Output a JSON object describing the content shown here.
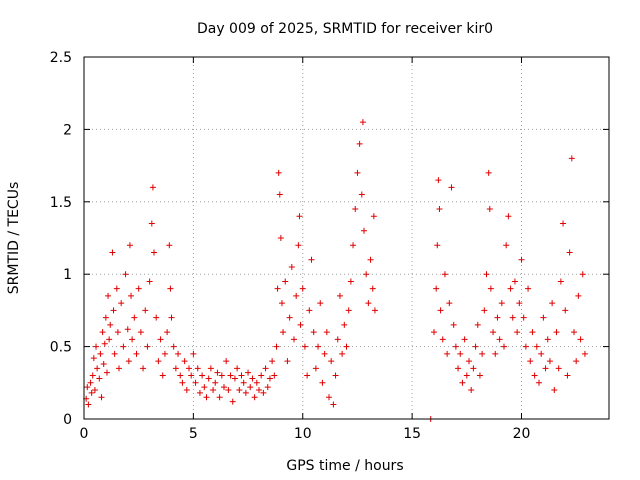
{
  "chart_data": {
    "type": "scatter",
    "title": "Day 009 of 2025, SRMTID for receiver kir0",
    "xlabel": "GPS time / hours",
    "ylabel": "SRMTID / TECUs",
    "xlim": [
      0,
      24
    ],
    "ylim": [
      0,
      2.5
    ],
    "xticks": [
      0,
      5,
      10,
      15,
      20
    ],
    "xtick_labels": [
      "0",
      "5",
      "10",
      "15",
      "20"
    ],
    "yticks": [
      0,
      0.5,
      1,
      1.5,
      2,
      2.5
    ],
    "ytick_labels": [
      "0",
      "0.5",
      "1",
      "1.5",
      "2",
      "2.5"
    ],
    "grid": true,
    "marker": "+",
    "color": "#e00000",
    "series": [
      {
        "name": "SRMTID",
        "points": [
          [
            0.1,
            0.14
          ],
          [
            0.15,
            0.22
          ],
          [
            0.2,
            0.1
          ],
          [
            0.3,
            0.25
          ],
          [
            0.35,
            0.18
          ],
          [
            0.4,
            0.3
          ],
          [
            0.45,
            0.42
          ],
          [
            0.5,
            0.2
          ],
          [
            0.55,
            0.5
          ],
          [
            0.6,
            0.35
          ],
          [
            0.7,
            0.28
          ],
          [
            0.75,
            0.45
          ],
          [
            0.8,
            0.15
          ],
          [
            0.85,
            0.6
          ],
          [
            0.9,
            0.38
          ],
          [
            0.95,
            0.52
          ],
          [
            1.0,
            0.7
          ],
          [
            1.05,
            0.32
          ],
          [
            1.1,
            0.85
          ],
          [
            1.15,
            0.55
          ],
          [
            1.2,
            0.65
          ],
          [
            1.3,
            1.15
          ],
          [
            1.35,
            0.75
          ],
          [
            1.4,
            0.45
          ],
          [
            1.5,
            0.9
          ],
          [
            1.55,
            0.6
          ],
          [
            1.6,
            0.35
          ],
          [
            1.7,
            0.8
          ],
          [
            1.8,
            0.5
          ],
          [
            1.9,
            1.0
          ],
          [
            2.0,
            0.62
          ],
          [
            2.05,
            0.4
          ],
          [
            2.1,
            1.2
          ],
          [
            2.15,
            0.85
          ],
          [
            2.2,
            0.55
          ],
          [
            2.3,
            0.7
          ],
          [
            2.4,
            0.45
          ],
          [
            2.5,
            0.9
          ],
          [
            2.6,
            0.6
          ],
          [
            2.7,
            0.35
          ],
          [
            2.8,
            0.75
          ],
          [
            2.9,
            0.5
          ],
          [
            3.0,
            0.95
          ],
          [
            3.1,
            1.35
          ],
          [
            3.15,
            1.6
          ],
          [
            3.2,
            1.15
          ],
          [
            3.3,
            0.7
          ],
          [
            3.4,
            0.4
          ],
          [
            3.5,
            0.55
          ],
          [
            3.6,
            0.3
          ],
          [
            3.7,
            0.45
          ],
          [
            3.8,
            0.6
          ],
          [
            3.9,
            1.2
          ],
          [
            3.95,
            0.9
          ],
          [
            4.0,
            0.7
          ],
          [
            4.1,
            0.5
          ],
          [
            4.2,
            0.35
          ],
          [
            4.3,
            0.45
          ],
          [
            4.4,
            0.3
          ],
          [
            4.5,
            0.25
          ],
          [
            4.6,
            0.4
          ],
          [
            4.7,
            0.2
          ],
          [
            4.8,
            0.35
          ],
          [
            4.9,
            0.3
          ],
          [
            5.0,
            0.45
          ],
          [
            5.1,
            0.25
          ],
          [
            5.2,
            0.35
          ],
          [
            5.3,
            0.18
          ],
          [
            5.4,
            0.3
          ],
          [
            5.5,
            0.22
          ],
          [
            5.6,
            0.15
          ],
          [
            5.7,
            0.28
          ],
          [
            5.8,
            0.35
          ],
          [
            5.9,
            0.2
          ],
          [
            6.0,
            0.25
          ],
          [
            6.1,
            0.32
          ],
          [
            6.2,
            0.15
          ],
          [
            6.3,
            0.3
          ],
          [
            6.4,
            0.22
          ],
          [
            6.5,
            0.4
          ],
          [
            6.6,
            0.2
          ],
          [
            6.7,
            0.3
          ],
          [
            6.8,
            0.12
          ],
          [
            6.9,
            0.28
          ],
          [
            7.0,
            0.35
          ],
          [
            7.1,
            0.2
          ],
          [
            7.2,
            0.3
          ],
          [
            7.3,
            0.25
          ],
          [
            7.4,
            0.18
          ],
          [
            7.5,
            0.32
          ],
          [
            7.6,
            0.22
          ],
          [
            7.7,
            0.28
          ],
          [
            7.8,
            0.15
          ],
          [
            7.9,
            0.25
          ],
          [
            8.0,
            0.2
          ],
          [
            8.1,
            0.3
          ],
          [
            8.2,
            0.18
          ],
          [
            8.3,
            0.35
          ],
          [
            8.4,
            0.22
          ],
          [
            8.5,
            0.28
          ],
          [
            8.6,
            0.4
          ],
          [
            8.7,
            0.3
          ],
          [
            8.8,
            0.5
          ],
          [
            8.85,
            0.9
          ],
          [
            8.9,
            1.7
          ],
          [
            8.95,
            1.55
          ],
          [
            9.0,
            1.25
          ],
          [
            9.05,
            0.8
          ],
          [
            9.1,
            0.6
          ],
          [
            9.2,
            0.95
          ],
          [
            9.3,
            0.4
          ],
          [
            9.4,
            0.7
          ],
          [
            9.5,
            1.05
          ],
          [
            9.6,
            0.55
          ],
          [
            9.7,
            0.85
          ],
          [
            9.8,
            1.2
          ],
          [
            9.85,
            1.4
          ],
          [
            9.9,
            0.65
          ],
          [
            10.0,
            0.9
          ],
          [
            10.1,
            0.5
          ],
          [
            10.2,
            0.3
          ],
          [
            10.3,
            0.75
          ],
          [
            10.4,
            1.1
          ],
          [
            10.5,
            0.6
          ],
          [
            10.6,
            0.35
          ],
          [
            10.7,
            0.5
          ],
          [
            10.8,
            0.8
          ],
          [
            10.9,
            0.25
          ],
          [
            11.0,
            0.45
          ],
          [
            11.1,
            0.6
          ],
          [
            11.2,
            0.15
          ],
          [
            11.3,
            0.4
          ],
          [
            11.4,
            0.1
          ],
          [
            11.5,
            0.3
          ],
          [
            11.6,
            0.55
          ],
          [
            11.7,
            0.85
          ],
          [
            11.8,
            0.45
          ],
          [
            11.9,
            0.65
          ],
          [
            12.0,
            0.5
          ],
          [
            12.1,
            0.75
          ],
          [
            12.2,
            0.95
          ],
          [
            12.3,
            1.2
          ],
          [
            12.4,
            1.45
          ],
          [
            12.5,
            1.7
          ],
          [
            12.6,
            1.9
          ],
          [
            12.7,
            1.55
          ],
          [
            12.75,
            2.05
          ],
          [
            12.8,
            1.3
          ],
          [
            12.9,
            1.0
          ],
          [
            13.0,
            0.8
          ],
          [
            13.1,
            1.1
          ],
          [
            13.2,
            0.9
          ],
          [
            13.25,
            1.4
          ],
          [
            13.3,
            0.75
          ],
          [
            15.85,
            0.0
          ],
          [
            16.0,
            0.6
          ],
          [
            16.1,
            0.9
          ],
          [
            16.15,
            1.2
          ],
          [
            16.2,
            1.65
          ],
          [
            16.25,
            1.45
          ],
          [
            16.3,
            0.75
          ],
          [
            16.4,
            0.55
          ],
          [
            16.5,
            1.0
          ],
          [
            16.6,
            0.45
          ],
          [
            16.7,
            0.8
          ],
          [
            16.8,
            1.6
          ],
          [
            16.9,
            0.65
          ],
          [
            17.0,
            0.5
          ],
          [
            17.1,
            0.35
          ],
          [
            17.2,
            0.45
          ],
          [
            17.3,
            0.25
          ],
          [
            17.4,
            0.55
          ],
          [
            17.5,
            0.3
          ],
          [
            17.6,
            0.4
          ],
          [
            17.7,
            0.2
          ],
          [
            17.8,
            0.35
          ],
          [
            17.9,
            0.5
          ],
          [
            18.0,
            0.65
          ],
          [
            18.1,
            0.3
          ],
          [
            18.2,
            0.45
          ],
          [
            18.3,
            0.75
          ],
          [
            18.4,
            1.0
          ],
          [
            18.5,
            1.7
          ],
          [
            18.55,
            1.45
          ],
          [
            18.6,
            0.9
          ],
          [
            18.7,
            0.6
          ],
          [
            18.8,
            0.45
          ],
          [
            18.9,
            0.7
          ],
          [
            19.0,
            0.55
          ],
          [
            19.1,
            0.8
          ],
          [
            19.2,
            0.5
          ],
          [
            19.3,
            1.2
          ],
          [
            19.4,
            1.4
          ],
          [
            19.5,
            0.9
          ],
          [
            19.6,
            0.7
          ],
          [
            19.7,
            0.95
          ],
          [
            19.8,
            0.6
          ],
          [
            19.9,
            0.8
          ],
          [
            20.0,
            1.1
          ],
          [
            20.1,
            0.7
          ],
          [
            20.2,
            0.5
          ],
          [
            20.3,
            0.9
          ],
          [
            20.4,
            0.4
          ],
          [
            20.5,
            0.6
          ],
          [
            20.6,
            0.3
          ],
          [
            20.7,
            0.5
          ],
          [
            20.8,
            0.25
          ],
          [
            20.9,
            0.45
          ],
          [
            21.0,
            0.7
          ],
          [
            21.1,
            0.35
          ],
          [
            21.2,
            0.55
          ],
          [
            21.3,
            0.4
          ],
          [
            21.4,
            0.8
          ],
          [
            21.5,
            0.2
          ],
          [
            21.6,
            0.6
          ],
          [
            21.7,
            0.35
          ],
          [
            21.8,
            0.95
          ],
          [
            21.9,
            1.35
          ],
          [
            22.0,
            0.75
          ],
          [
            22.1,
            0.3
          ],
          [
            22.2,
            1.15
          ],
          [
            22.3,
            1.8
          ],
          [
            22.4,
            0.6
          ],
          [
            22.5,
            0.4
          ],
          [
            22.6,
            0.85
          ],
          [
            22.7,
            0.55
          ],
          [
            22.8,
            1.0
          ],
          [
            22.9,
            0.45
          ]
        ]
      }
    ]
  }
}
